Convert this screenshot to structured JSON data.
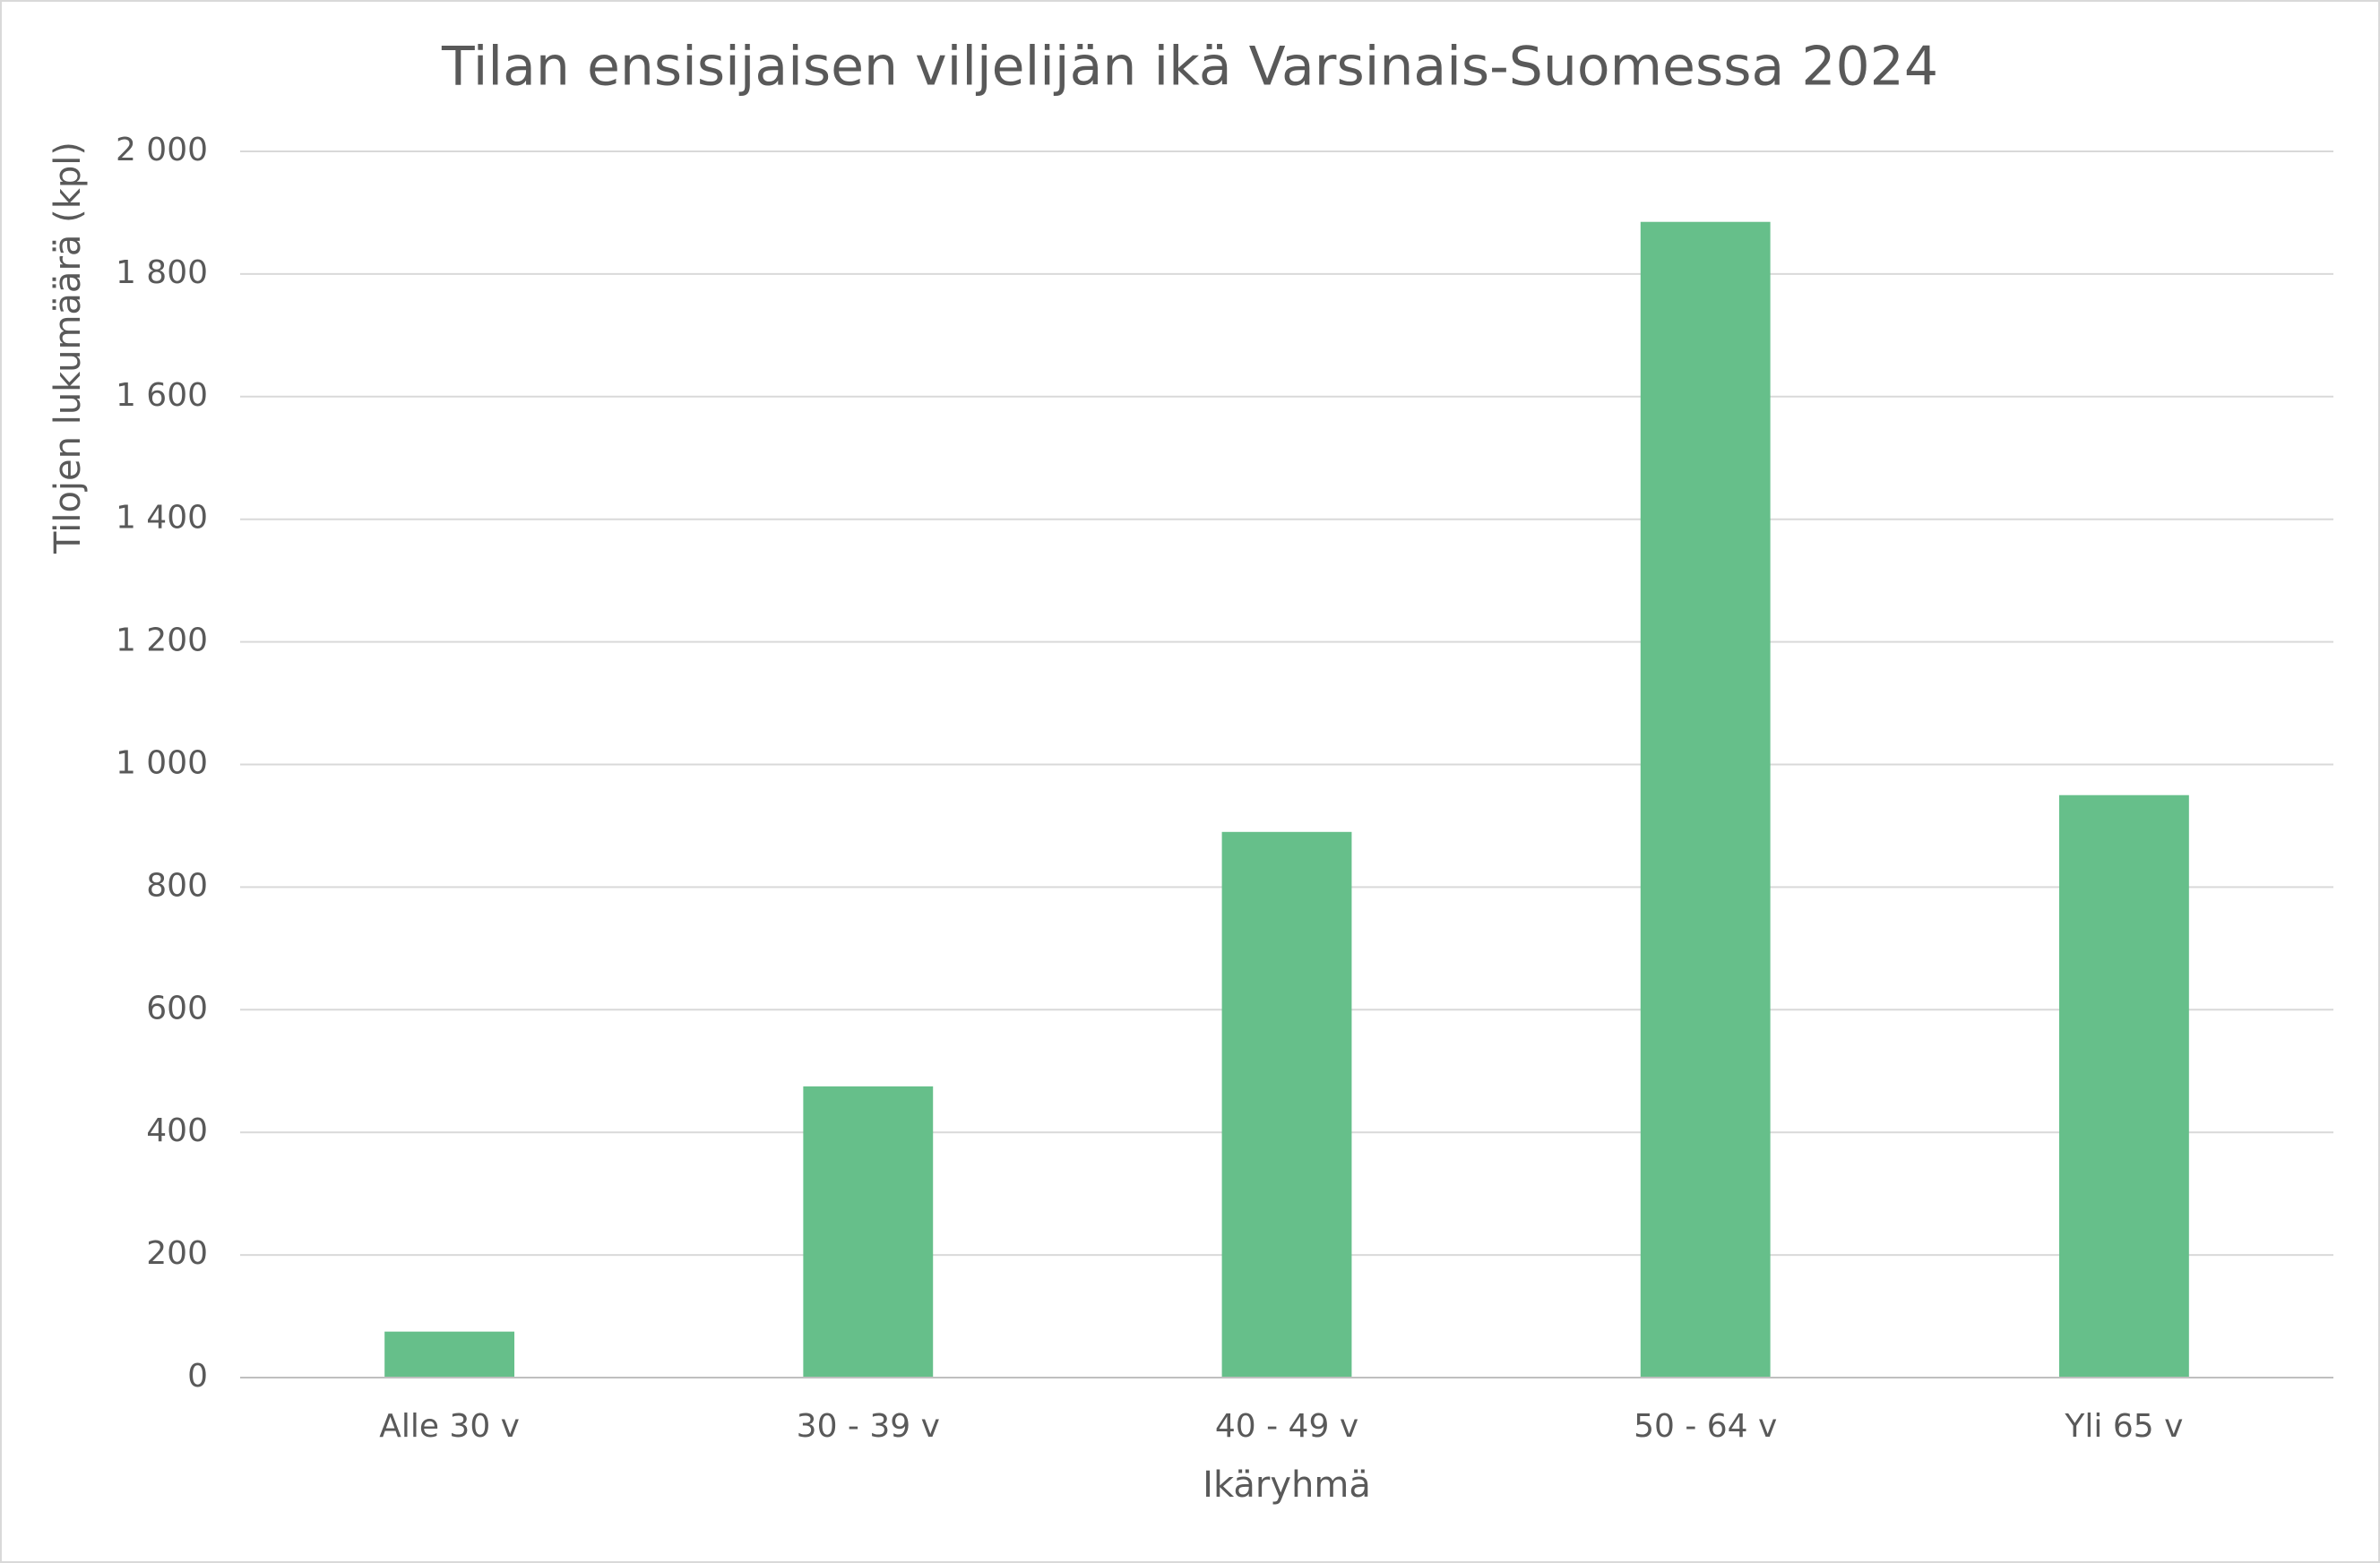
{
  "chart_data": {
    "type": "bar",
    "title": "Tilan ensisijaisen viljelijän ikä Varsinais-Suomessa 2024",
    "x_label": "Ikäryhmä",
    "y_label": "Tilojen lukumäärä (kpl)",
    "categories": [
      "Alle 30 v",
      "30 - 39 v",
      "40 - 49 v",
      "50 - 64 v",
      "Yli 65 v"
    ],
    "values": [
      75,
      475,
      890,
      1885,
      950
    ],
    "color": "#66bf8a",
    "ylim": [
      0,
      2000
    ],
    "yticks": [
      0,
      200,
      400,
      600,
      800,
      {
        "value": 1000,
        "label": "1 000"
      },
      {
        "value": 1200,
        "label": "1 200"
      },
      {
        "value": 1400,
        "label": "1 400"
      },
      {
        "value": 1600,
        "label": "1 600"
      },
      {
        "value": 1800,
        "label": "1 800"
      },
      {
        "value": 2000,
        "label": "2 000"
      }
    ],
    "grid": true
  }
}
